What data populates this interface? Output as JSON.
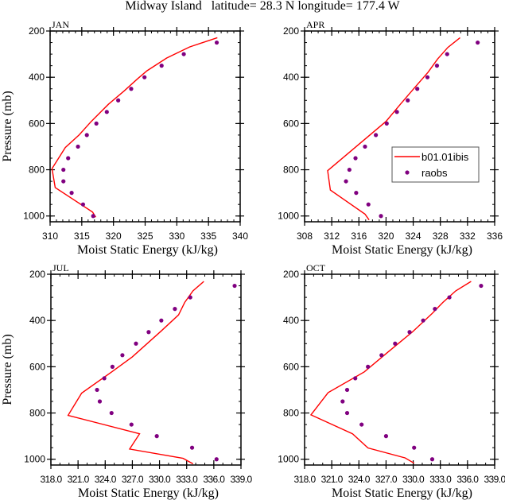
{
  "title": "Midway Island   latitude= 28.3 N longitude= 177.4 W",
  "colors": {
    "model": "#ff0000",
    "obs": "#800080"
  },
  "chart_data": [
    {
      "type": "line+scatter",
      "panel_label": "JAN",
      "xlabel": "Moist Static Energy (kJ/kg)",
      "ylabel": "Pressure (mb)",
      "xlim": [
        310,
        340
      ],
      "ylim": [
        1025,
        200
      ],
      "y_reversed": true,
      "xticks": [
        310,
        315,
        320,
        325,
        330,
        335,
        340
      ],
      "xtick_labels": [
        "310",
        "315",
        "320",
        "325",
        "330",
        "335",
        "340"
      ],
      "yticks": [
        200,
        400,
        600,
        800,
        1000
      ],
      "ytick_labels": [
        "200",
        "400",
        "600",
        "800",
        "1000"
      ],
      "series": [
        {
          "name": "b01.01ibis",
          "kind": "line",
          "x": [
            336.4,
            332.0,
            328.4,
            325.3,
            323.8,
            321.7,
            319.2,
            316.5,
            314.6,
            312.4,
            310.3,
            310.8,
            316.7,
            317.2
          ],
          "y": [
            229,
            269,
            317,
            372,
            407,
            459,
            517,
            591,
            649,
            704,
            795,
            877,
            983,
            1005
          ]
        },
        {
          "name": "raobs",
          "kind": "scatter",
          "x": [
            336.3,
            331.1,
            327.6,
            324.9,
            322.8,
            320.75,
            318.95,
            317.3,
            315.8,
            314.4,
            312.85,
            312.1,
            312.1,
            313.4,
            315.2,
            316.8
          ],
          "y": [
            250,
            300,
            350,
            400,
            450,
            500,
            550,
            600,
            650,
            700,
            750,
            800,
            850,
            900,
            950,
            1000
          ]
        }
      ]
    },
    {
      "type": "line+scatter",
      "panel_label": "APR",
      "xlabel": "Moist Static Energy (kJ/kg)",
      "ylabel": "",
      "xlim": [
        308,
        336
      ],
      "ylim": [
        1025,
        200
      ],
      "y_reversed": true,
      "xticks": [
        308,
        312,
        316,
        320,
        324,
        328,
        332,
        336
      ],
      "xtick_labels": [
        "308",
        "312",
        "316",
        "320",
        "324",
        "328",
        "332",
        "336"
      ],
      "yticks": [
        200,
        400,
        600,
        800,
        1000
      ],
      "ytick_labels": [
        "200",
        "400",
        "600",
        "800",
        "1000"
      ],
      "legend": {
        "placement": "center-right",
        "entries": [
          "b01.01ibis",
          "raobs"
        ]
      },
      "series": [
        {
          "name": "b01.01ibis",
          "kind": "line",
          "x": [
            330.9,
            329.1,
            327.6,
            326.2,
            324.3,
            322.1,
            320.0,
            311.4,
            311.8,
            316.9,
            317.5
          ],
          "y": [
            229,
            271,
            321,
            378,
            442,
            517,
            591,
            804,
            888,
            992,
            1017
          ]
        },
        {
          "name": "raobs",
          "kind": "scatter",
          "x": [
            333.5,
            329.0,
            327.5,
            326.1,
            324.6,
            323.2,
            321.6,
            320.1,
            318.5,
            316.9,
            315.5,
            314.6,
            314.1,
            315.6,
            317.4,
            319.25
          ],
          "y": [
            250,
            300,
            350,
            400,
            450,
            500,
            550,
            600,
            650,
            700,
            750,
            800,
            850,
            900,
            950,
            1000
          ]
        }
      ]
    },
    {
      "type": "line+scatter",
      "panel_label": "JUL",
      "xlabel": "Moist Static Energy (kJ/kg)",
      "ylabel": "Pressure (mb)",
      "xlim": [
        318,
        339
      ],
      "ylim": [
        1025,
        200
      ],
      "y_reversed": true,
      "xticks": [
        318,
        321,
        324,
        327,
        330,
        333,
        336,
        339
      ],
      "xtick_labels": [
        "318.0",
        "321.0",
        "324.0",
        "327.0",
        "330.0",
        "333.0",
        "336.0",
        "339.0"
      ],
      "yticks": [
        200,
        400,
        600,
        800,
        1000
      ],
      "ytick_labels": [
        "200",
        "400",
        "600",
        "800",
        "1000"
      ],
      "series": [
        {
          "name": "b01.01ibis",
          "kind": "line",
          "x": [
            334.9,
            333.7,
            332.8,
            332.1,
            330.2,
            327.0,
            324.8,
            321.4,
            319.9,
            327.8,
            326.7,
            332.6,
            333.7
          ],
          "y": [
            231,
            272,
            321,
            376,
            445,
            557,
            620,
            714,
            810,
            890,
            956,
            996,
            1020
          ]
        },
        {
          "name": "raobs",
          "kind": "scatter",
          "x": [
            338.3,
            333.4,
            331.7,
            330.2,
            328.8,
            327.4,
            325.9,
            324.8,
            323.9,
            323.1,
            323.4,
            324.7,
            326.9,
            329.7,
            333.6,
            336.3
          ],
          "y": [
            250,
            300,
            350,
            400,
            450,
            500,
            550,
            600,
            650,
            700,
            750,
            800,
            850,
            900,
            950,
            1000
          ]
        }
      ]
    },
    {
      "type": "line+scatter",
      "panel_label": "OCT",
      "xlabel": "Moist Static Energy (kJ/kg)",
      "ylabel": "",
      "xlim": [
        318,
        339
      ],
      "ylim": [
        1025,
        200
      ],
      "y_reversed": true,
      "xticks": [
        318,
        321,
        324,
        327,
        330,
        333,
        336,
        339
      ],
      "xtick_labels": [
        "318.0",
        "321.0",
        "324.0",
        "327.0",
        "330.0",
        "333.0",
        "336.0",
        "339.0"
      ],
      "yticks": [
        200,
        400,
        600,
        800,
        1000
      ],
      "ytick_labels": [
        "200",
        "400",
        "600",
        "800",
        "1000"
      ],
      "series": [
        {
          "name": "b01.01ibis",
          "kind": "line",
          "x": [
            336.4,
            334.7,
            333.3,
            332.1,
            329.9,
            327.1,
            324.6,
            320.6,
            318.7,
            323.3,
            325.0,
            329.1,
            330.1
          ],
          "y": [
            231,
            272,
            321,
            369,
            450,
            540,
            622,
            712,
            808,
            890,
            951,
            994,
            1017
          ]
        },
        {
          "name": "raobs",
          "kind": "scatter",
          "x": [
            337.5,
            334.0,
            332.4,
            331.1,
            329.6,
            328.0,
            326.5,
            325.0,
            323.6,
            322.7,
            322.2,
            322.7,
            324.3,
            327.0,
            330.1,
            332.1
          ],
          "y": [
            250,
            300,
            350,
            400,
            450,
            500,
            550,
            600,
            650,
            700,
            750,
            800,
            850,
            900,
            950,
            1000
          ]
        }
      ]
    }
  ]
}
